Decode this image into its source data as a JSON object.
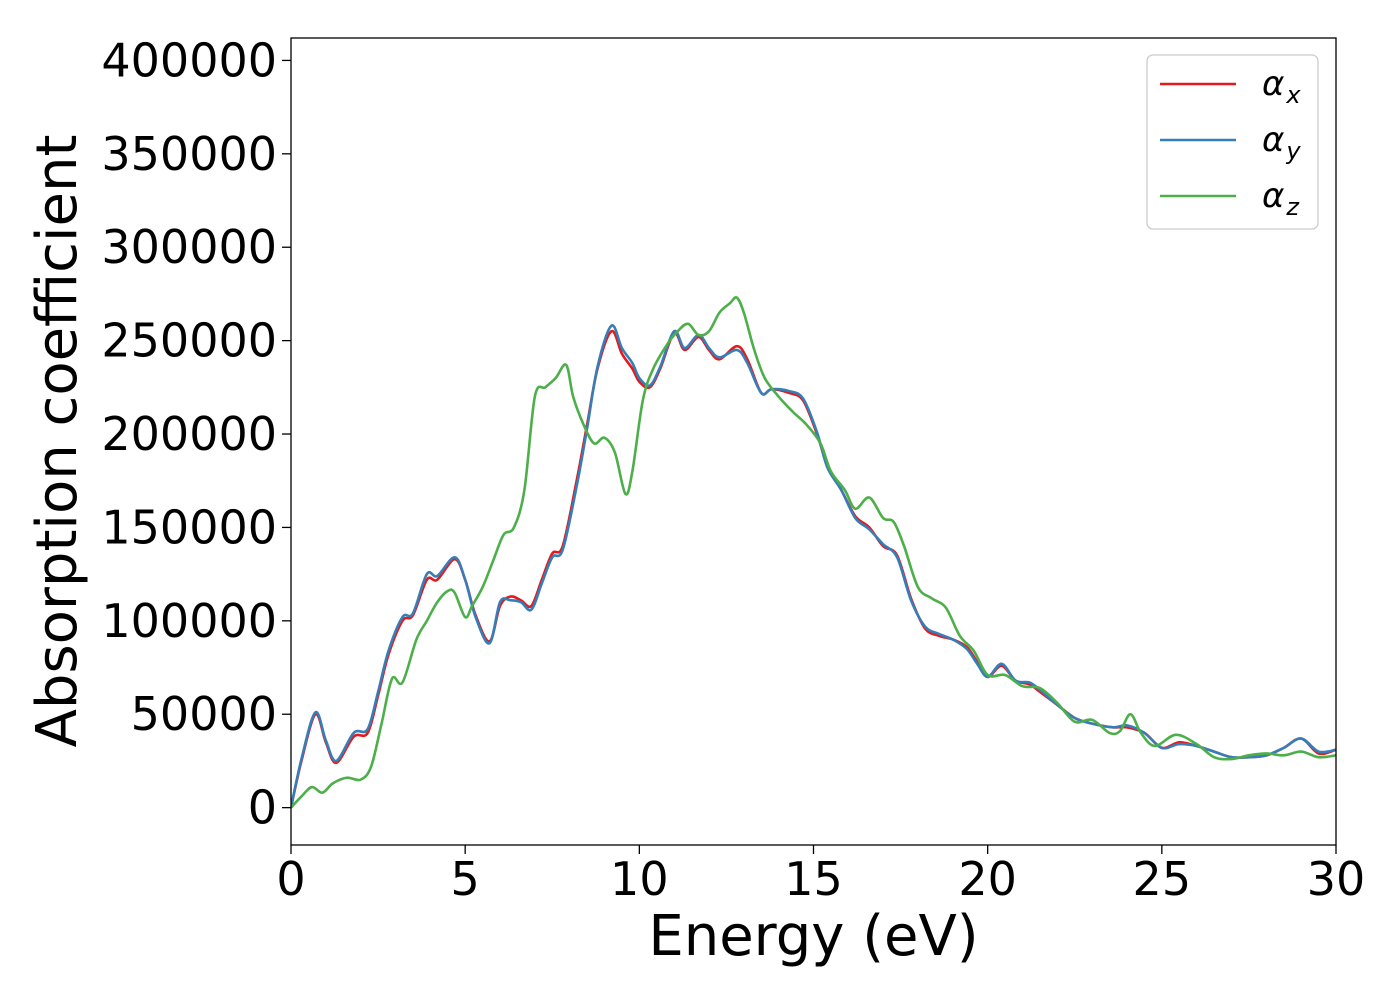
{
  "chart_data": {
    "type": "line",
    "title": "",
    "xlabel": "Energy (eV)",
    "ylabel": "Absorption coefficient",
    "xlim": [
      0,
      30
    ],
    "ylim": [
      -20000,
      412000
    ],
    "xticks": [
      0,
      5,
      10,
      15,
      20,
      25,
      30
    ],
    "xtick_labels": [
      "0",
      "5",
      "10",
      "15",
      "20",
      "25",
      "30"
    ],
    "yticks": [
      0,
      50000,
      100000,
      150000,
      200000,
      250000,
      300000,
      350000,
      400000
    ],
    "ytick_labels": [
      "0",
      "50000",
      "100000",
      "150000",
      "200000",
      "250000",
      "300000",
      "350000",
      "400000"
    ],
    "grid": false,
    "legend_position": "top-right",
    "series": [
      {
        "name": "αx",
        "legend_base": "α",
        "legend_sub": "x",
        "color": "#e41a1c",
        "x": [
          0,
          0.3,
          0.7,
          1.0,
          1.3,
          1.8,
          2.2,
          2.5,
          2.8,
          3.2,
          3.5,
          3.9,
          4.2,
          4.7,
          5.0,
          5.3,
          5.7,
          6.0,
          6.3,
          6.6,
          6.9,
          7.2,
          7.5,
          7.8,
          8.2,
          8.5,
          8.8,
          9.2,
          9.5,
          9.8,
          10.0,
          10.3,
          10.6,
          11.0,
          11.3,
          11.7,
          12.0,
          12.3,
          12.8,
          13.1,
          13.5,
          13.8,
          14.3,
          14.7,
          15.1,
          15.4,
          15.8,
          16.2,
          16.6,
          17.0,
          17.4,
          17.8,
          18.2,
          18.6,
          19.0,
          19.4,
          19.7,
          20.0,
          20.4,
          20.8,
          21.2,
          21.5,
          22.0,
          22.5,
          23.0,
          23.6,
          24.0,
          24.5,
          25.0,
          25.5,
          26.0,
          26.5,
          27.0,
          27.5,
          28.0,
          28.5,
          29.0,
          29.5,
          30.0
        ],
        "values": [
          0,
          25000,
          50000,
          35000,
          24000,
          38000,
          40000,
          60000,
          82000,
          100000,
          103000,
          122000,
          122000,
          133000,
          122000,
          103000,
          89000,
          108000,
          113000,
          111000,
          108000,
          122000,
          136000,
          140000,
          175000,
          205000,
          235000,
          255000,
          243000,
          235000,
          228000,
          225000,
          235000,
          254000,
          245000,
          252000,
          245000,
          240000,
          247000,
          240000,
          222000,
          224000,
          222000,
          218000,
          200000,
          183000,
          170000,
          156000,
          150000,
          140000,
          135000,
          112000,
          96000,
          92000,
          90000,
          86000,
          78000,
          70000,
          76000,
          68000,
          66000,
          62000,
          55000,
          48000,
          45000,
          43000,
          43000,
          40000,
          32000,
          35000,
          33000,
          30000,
          27000,
          27000,
          28000,
          32000,
          37000,
          29000,
          31000
        ]
      },
      {
        "name": "αy",
        "legend_base": "α",
        "legend_sub": "y",
        "color": "#377eb8",
        "x": [
          0,
          0.3,
          0.7,
          1.0,
          1.3,
          1.8,
          2.2,
          2.5,
          2.8,
          3.2,
          3.5,
          3.9,
          4.2,
          4.7,
          5.0,
          5.3,
          5.7,
          6.0,
          6.3,
          6.6,
          6.9,
          7.2,
          7.5,
          7.8,
          8.2,
          8.5,
          8.8,
          9.2,
          9.5,
          9.8,
          10.0,
          10.3,
          10.6,
          11.0,
          11.3,
          11.7,
          12.0,
          12.3,
          12.8,
          13.1,
          13.5,
          13.8,
          14.3,
          14.7,
          15.1,
          15.4,
          15.8,
          16.2,
          16.6,
          17.0,
          17.4,
          17.8,
          18.2,
          18.6,
          19.0,
          19.4,
          19.7,
          20.0,
          20.4,
          20.8,
          21.2,
          21.5,
          22.0,
          22.5,
          23.0,
          23.6,
          24.0,
          24.5,
          25.0,
          25.5,
          26.0,
          26.5,
          27.0,
          27.5,
          28.0,
          28.5,
          29.0,
          29.5,
          30.0
        ],
        "values": [
          0,
          26000,
          51000,
          36000,
          25000,
          40000,
          42000,
          62000,
          84000,
          102000,
          104000,
          125000,
          124000,
          134000,
          122000,
          102000,
          88000,
          110000,
          111000,
          110000,
          106000,
          120000,
          134000,
          138000,
          172000,
          203000,
          236000,
          258000,
          246000,
          238000,
          230000,
          226000,
          236000,
          255000,
          246000,
          253000,
          246000,
          241000,
          245000,
          238000,
          222000,
          224000,
          223000,
          219000,
          201000,
          182000,
          170000,
          155000,
          149000,
          141000,
          134000,
          111000,
          97000,
          93000,
          90000,
          85000,
          77000,
          70000,
          77000,
          68000,
          67000,
          63000,
          55000,
          48000,
          45000,
          43000,
          44000,
          40000,
          32000,
          34000,
          33000,
          30000,
          27000,
          27000,
          28000,
          32000,
          37000,
          30000,
          31000
        ]
      },
      {
        "name": "αz",
        "legend_base": "α",
        "legend_sub": "z",
        "color": "#4daf4a",
        "x": [
          0,
          0.3,
          0.6,
          0.9,
          1.2,
          1.6,
          2.0,
          2.3,
          2.6,
          2.9,
          3.2,
          3.6,
          3.9,
          4.2,
          4.5,
          4.7,
          5.0,
          5.2,
          5.5,
          5.8,
          6.1,
          6.4,
          6.7,
          7.0,
          7.3,
          7.6,
          7.9,
          8.1,
          8.4,
          8.7,
          9.0,
          9.3,
          9.6,
          9.8,
          10.1,
          10.4,
          10.8,
          11.1,
          11.4,
          11.7,
          12.0,
          12.3,
          12.6,
          12.8,
          13.0,
          13.3,
          13.6,
          14.0,
          14.4,
          14.8,
          15.2,
          15.5,
          15.9,
          16.2,
          16.6,
          17.0,
          17.3,
          17.6,
          18.0,
          18.4,
          18.8,
          19.2,
          19.6,
          20.0,
          20.5,
          21.0,
          21.5,
          22.0,
          22.5,
          23.0,
          23.5,
          23.8,
          24.1,
          24.4,
          24.8,
          25.4,
          26.0,
          26.5,
          27.0,
          27.5,
          28.0,
          28.5,
          29.0,
          29.5,
          30.0
        ],
        "values": [
          0,
          6000,
          11000,
          8000,
          13000,
          16000,
          15000,
          22000,
          45000,
          69000,
          67000,
          90000,
          100000,
          110000,
          116000,
          115000,
          102000,
          108000,
          118000,
          132000,
          146000,
          150000,
          170000,
          220000,
          225000,
          230000,
          237000,
          220000,
          205000,
          195000,
          198000,
          190000,
          168000,
          180000,
          218000,
          235000,
          248000,
          255000,
          259000,
          253000,
          255000,
          265000,
          270000,
          273000,
          265000,
          245000,
          230000,
          220000,
          212000,
          205000,
          195000,
          180000,
          170000,
          160000,
          166000,
          155000,
          153000,
          140000,
          118000,
          112000,
          107000,
          92000,
          84000,
          71000,
          71000,
          65000,
          64000,
          56000,
          46000,
          47000,
          40000,
          41000,
          50000,
          40000,
          33000,
          39000,
          34000,
          27000,
          26000,
          28000,
          29000,
          28000,
          30000,
          27000,
          28000
        ]
      }
    ]
  }
}
